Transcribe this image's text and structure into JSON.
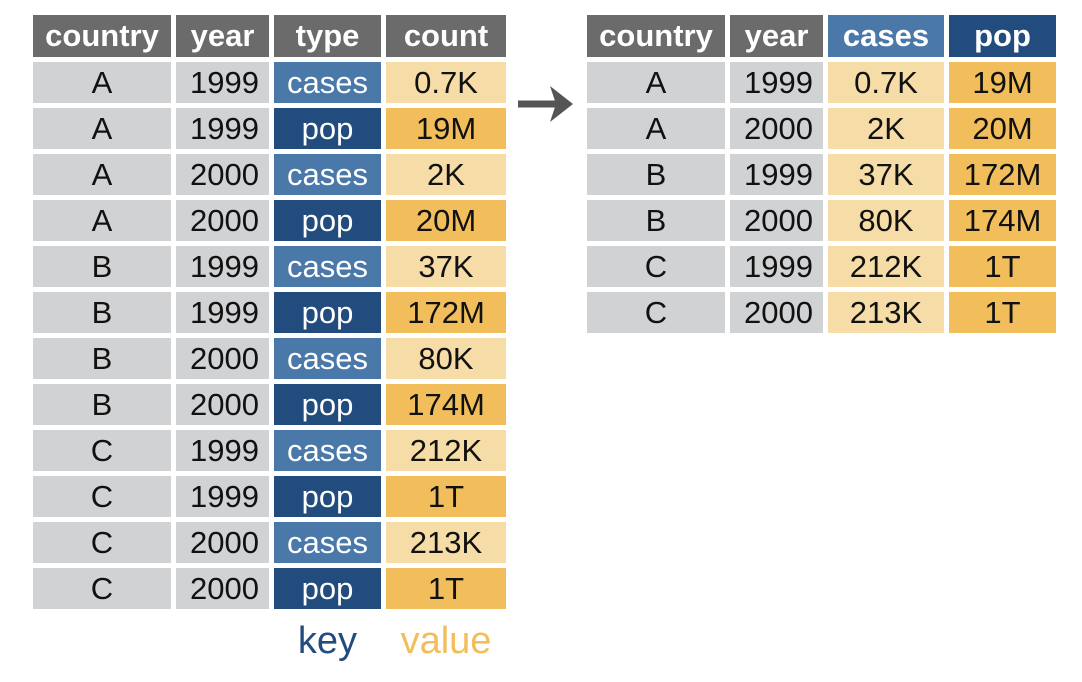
{
  "left_table": {
    "headers": [
      "country",
      "year",
      "type",
      "count"
    ],
    "rows": [
      {
        "country": "A",
        "year": "1999",
        "type": "cases",
        "count": "0.7K"
      },
      {
        "country": "A",
        "year": "1999",
        "type": "pop",
        "count": "19M"
      },
      {
        "country": "A",
        "year": "2000",
        "type": "cases",
        "count": "2K"
      },
      {
        "country": "A",
        "year": "2000",
        "type": "pop",
        "count": "20M"
      },
      {
        "country": "B",
        "year": "1999",
        "type": "cases",
        "count": "37K"
      },
      {
        "country": "B",
        "year": "1999",
        "type": "pop",
        "count": "172M"
      },
      {
        "country": "B",
        "year": "2000",
        "type": "cases",
        "count": "80K"
      },
      {
        "country": "B",
        "year": "2000",
        "type": "pop",
        "count": "174M"
      },
      {
        "country": "C",
        "year": "1999",
        "type": "cases",
        "count": "212K"
      },
      {
        "country": "C",
        "year": "1999",
        "type": "pop",
        "count": "1T"
      },
      {
        "country": "C",
        "year": "2000",
        "type": "cases",
        "count": "213K"
      },
      {
        "country": "C",
        "year": "2000",
        "type": "pop",
        "count": "1T"
      }
    ]
  },
  "right_table": {
    "headers": [
      "country",
      "year",
      "cases",
      "pop"
    ],
    "rows": [
      {
        "country": "A",
        "year": "1999",
        "cases": "0.7K",
        "pop": "19M"
      },
      {
        "country": "A",
        "year": "2000",
        "cases": "2K",
        "pop": "20M"
      },
      {
        "country": "B",
        "year": "1999",
        "cases": "37K",
        "pop": "172M"
      },
      {
        "country": "B",
        "year": "2000",
        "cases": "80K",
        "pop": "174M"
      },
      {
        "country": "C",
        "year": "1999",
        "cases": "212K",
        "pop": "1T"
      },
      {
        "country": "C",
        "year": "2000",
        "cases": "213K",
        "pop": "1T"
      }
    ]
  },
  "labels": {
    "key": "key",
    "value": "value"
  },
  "icons": {
    "arrow": "arrow-right-icon"
  },
  "colors": {
    "header_gray": "#6b6b6b",
    "id_cell_gray": "#d1d2d4",
    "cases_blue": "#4a78a8",
    "pop_blue": "#234c7e",
    "value_light": "#f6dda7",
    "value_dark": "#f1be5b",
    "arrow": "#555555"
  }
}
